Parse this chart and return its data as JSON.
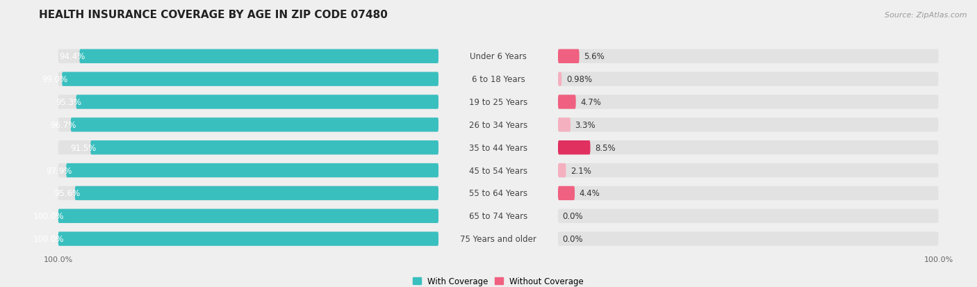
{
  "title": "HEALTH INSURANCE COVERAGE BY AGE IN ZIP CODE 07480",
  "source": "Source: ZipAtlas.com",
  "categories": [
    "Under 6 Years",
    "6 to 18 Years",
    "19 to 25 Years",
    "26 to 34 Years",
    "35 to 44 Years",
    "45 to 54 Years",
    "55 to 64 Years",
    "65 to 74 Years",
    "75 Years and older"
  ],
  "with_coverage": [
    94.4,
    99.0,
    95.3,
    96.7,
    91.5,
    97.9,
    95.6,
    100.0,
    100.0
  ],
  "without_coverage": [
    5.6,
    0.98,
    4.7,
    3.3,
    8.5,
    2.1,
    4.4,
    0.0,
    0.0
  ],
  "with_labels": [
    "94.4%",
    "99.0%",
    "95.3%",
    "96.7%",
    "91.5%",
    "97.9%",
    "95.6%",
    "100.0%",
    "100.0%"
  ],
  "without_labels": [
    "5.6%",
    "0.98%",
    "4.7%",
    "3.3%",
    "8.5%",
    "2.1%",
    "4.4%",
    "0.0%",
    "0.0%"
  ],
  "color_with": "#3abfbf",
  "bg_color": "#efefef",
  "bar_bg_color": "#e2e2e2",
  "title_fontsize": 11,
  "label_fontsize": 8.5,
  "axis_label_fontsize": 8,
  "source_fontsize": 8,
  "bar_height": 0.62,
  "legend_with_color": "#3abfbf",
  "legend_without_color": "#f06080",
  "without_colors": [
    "#f06080",
    "#f5b0c0",
    "#f06080",
    "#f5b0c0",
    "#e03060",
    "#f5b0c0",
    "#f06080",
    "#f5c0d0",
    "#f5c0d0"
  ]
}
